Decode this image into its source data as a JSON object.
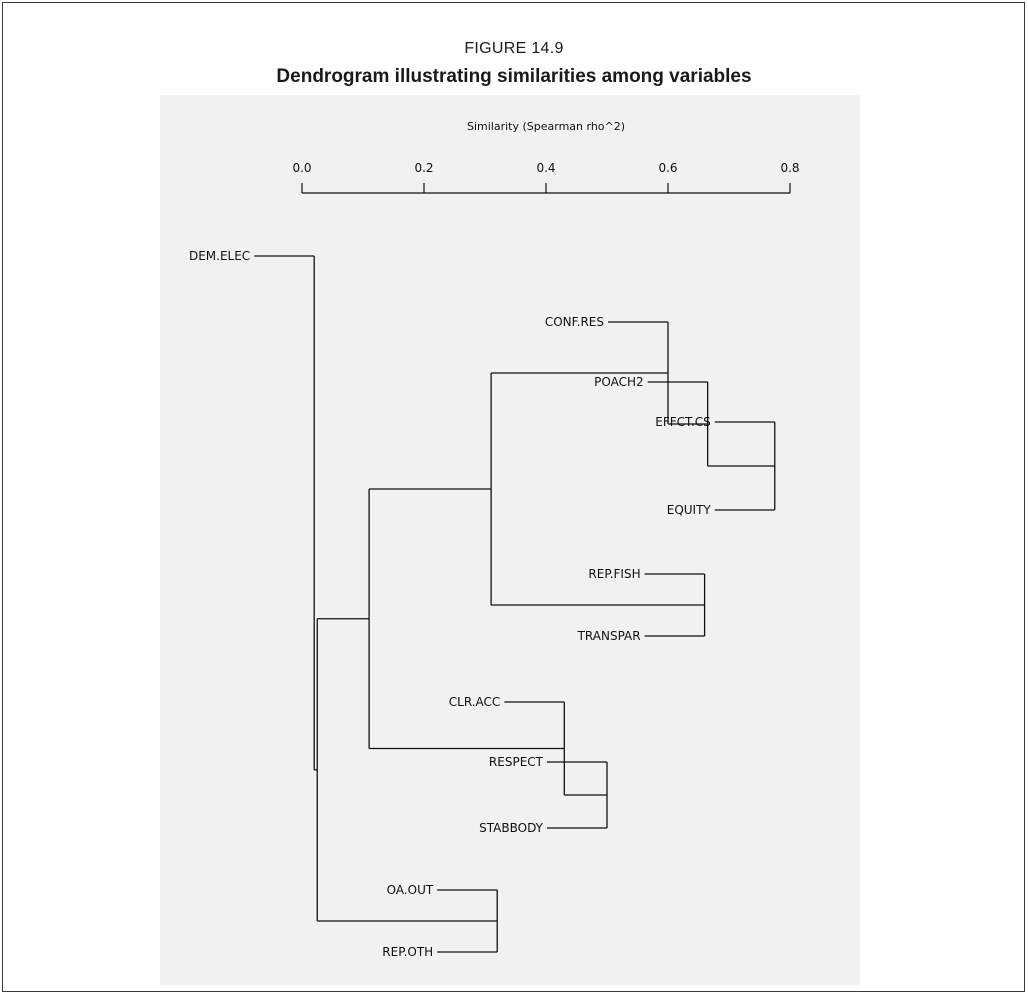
{
  "figure": {
    "label": "FIGURE 14.9",
    "title": "Dendrogram illustrating similarities among variables"
  },
  "colors": {
    "line": "#111111",
    "panel_background": "#f1f1f1",
    "page_background": "#ffffff"
  },
  "chart_data": {
    "type": "dendrogram",
    "title": "Dendrogram illustrating similarities among variables",
    "xlabel": "Similarity (Spearman rho^2)",
    "ylabel": "",
    "xlim": [
      0.0,
      0.8
    ],
    "x_ticks": [
      0.0,
      0.2,
      0.4,
      0.6,
      0.8
    ],
    "tick_labels": [
      "0.0",
      "0.2",
      "0.4",
      "0.6",
      "0.8"
    ],
    "axis_position": "top",
    "grid": false,
    "leaves": [
      "DEM.ELEC",
      "CONF.RES",
      "POACH2",
      "EFFCT.CS",
      "EQUITY",
      "REP.FISH",
      "TRANSPAR",
      "CLR.ACC",
      "RESPECT",
      "STABBODY",
      "OA.OUT",
      "REP.OTH"
    ],
    "merges": [
      {
        "left": "EFFCT.CS",
        "right": "EQUITY",
        "similarity": 0.775
      },
      {
        "left": "POACH2",
        "right": "EFFCT.CS + EQUITY",
        "similarity": 0.665
      },
      {
        "left": "CONF.RES",
        "right": "POACH2 + EFFCT.CS + EQUITY",
        "similarity": 0.6
      },
      {
        "left": "REP.FISH",
        "right": "TRANSPAR",
        "similarity": 0.66
      },
      {
        "left": "CONF.RES group",
        "right": "REP.FISH + TRANSPAR",
        "similarity": 0.31
      },
      {
        "left": "RESPECT",
        "right": "STABBODY",
        "similarity": 0.5
      },
      {
        "left": "CLR.ACC",
        "right": "RESPECT + STABBODY",
        "similarity": 0.43
      },
      {
        "left": "CONF.RES..TRANSPAR",
        "right": "CLR.ACC + RESPECT + STABBODY",
        "similarity": 0.11
      },
      {
        "left": "OA.OUT",
        "right": "REP.OTH",
        "similarity": 0.32
      },
      {
        "left": "CONF.RES..STABBODY",
        "right": "OA.OUT + REP.OTH",
        "similarity": 0.025
      },
      {
        "left": "DEM.ELEC",
        "right": "all others",
        "similarity": 0.02
      }
    ]
  }
}
